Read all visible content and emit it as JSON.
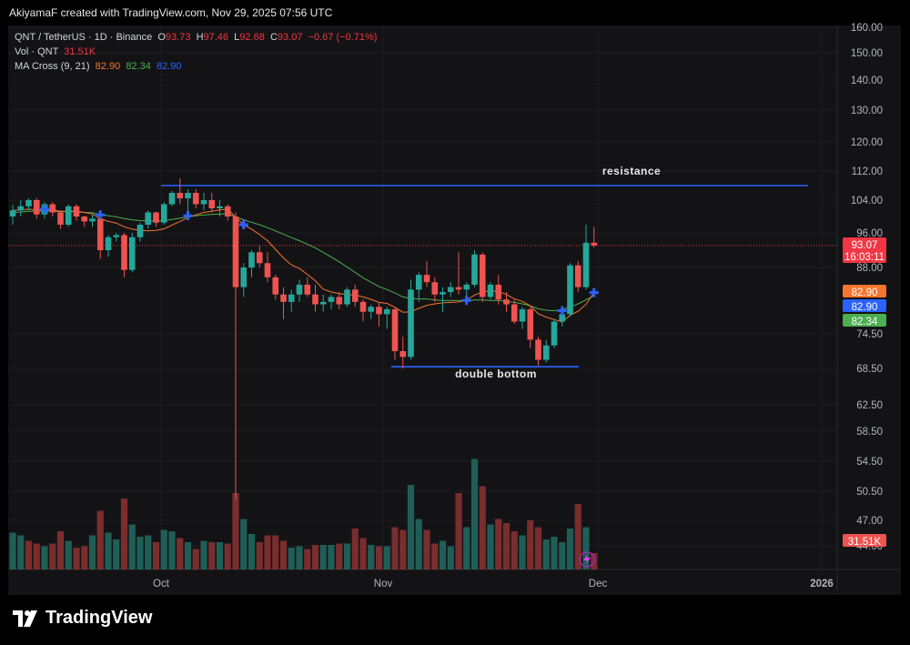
{
  "header": {
    "credit": "AkiyamaF created with TradingView.com, Nov 29, 2025 07:56 UTC"
  },
  "legend": {
    "symbol": "QNT / TetherUS · 1D · Binance",
    "o_label": "O",
    "o_value": "93.73",
    "h_label": "H",
    "h_value": "97.46",
    "l_label": "L",
    "l_value": "92.68",
    "c_label": "C",
    "c_value": "93.07",
    "change": "−0.67 (−0.71%)",
    "vol_label": "Vol · QNT",
    "vol_value": "31.51K",
    "ma_label": "MA Cross (9, 21)",
    "ma9": "82.90",
    "ma21": "82.34",
    "cross": "82.90"
  },
  "price_axis": {
    "ticks": [
      "160.00",
      "150.00",
      "140.00",
      "130.00",
      "120.00",
      "112.00",
      "104.00",
      "96.00",
      "88.00",
      "74.50",
      "68.50",
      "62.50",
      "58.50",
      "54.50",
      "50.50",
      "47.00",
      "44.00"
    ]
  },
  "badges": {
    "price": "93.07",
    "countdown": "16:03:11",
    "ma_fast": "82.90",
    "cross": "82.90",
    "ma_slow": "82.34",
    "volume": "31.51K"
  },
  "time_axis": {
    "labels": [
      "Oct",
      "Nov",
      "Dec",
      "2026"
    ]
  },
  "annotations": {
    "resistance": "resistance",
    "double_bottom": "double bottom"
  },
  "brand": {
    "name": "TradingView"
  },
  "colors": {
    "up": "#26a69a",
    "down": "#ef5350",
    "vol_up": "#1f5e57",
    "vol_down": "#7a2d2d",
    "ma_fast": "#f7752e",
    "ma_slow": "#4caf50",
    "cross": "#2962ff",
    "hline": "#2962ff",
    "last_price": "#f23645"
  },
  "chart_data": {
    "type": "candlestick",
    "symbol": "QNT / TetherUS",
    "interval": "1D",
    "exchange": "Binance",
    "price_ticks": [
      160,
      150,
      140,
      130,
      120,
      112,
      104,
      96,
      88,
      74.5,
      68.5,
      62.5,
      58.5,
      54.5,
      50.5,
      47,
      44
    ],
    "ohlc": [
      [
        100.0,
        102.8,
        98.0,
        101.5
      ],
      [
        101.5,
        104.0,
        100.0,
        102.5
      ],
      [
        102.5,
        104.5,
        101.5,
        104.0
      ],
      [
        104.0,
        104.6,
        99.5,
        100.5
      ],
      [
        100.5,
        103.5,
        99.5,
        103.0
      ],
      [
        103.0,
        103.5,
        100.0,
        101.0
      ],
      [
        101.0,
        101.5,
        97.0,
        98.0
      ],
      [
        98.0,
        103.0,
        97.5,
        102.5
      ],
      [
        102.5,
        103.0,
        99.0,
        100.0
      ],
      [
        100.0,
        100.2,
        97.5,
        98.8
      ],
      [
        98.8,
        100.5,
        97.5,
        99.5
      ],
      [
        99.5,
        100.0,
        90.0,
        92.0
      ],
      [
        92.0,
        95.5,
        90.5,
        95.0
      ],
      [
        95.0,
        96.0,
        94.0,
        95.5
      ],
      [
        95.5,
        96.0,
        86.0,
        87.5
      ],
      [
        87.5,
        96.0,
        87.0,
        95.0
      ],
      [
        95.0,
        98.5,
        94.0,
        98.0
      ],
      [
        98.0,
        101.5,
        97.0,
        101.0
      ],
      [
        101.0,
        101.2,
        97.5,
        98.5
      ],
      [
        98.5,
        103.5,
        98.0,
        103.0
      ],
      [
        103.0,
        106.5,
        102.5,
        106.0
      ],
      [
        106.0,
        110.0,
        103.0,
        104.5
      ],
      [
        104.5,
        107.0,
        101.0,
        106.0
      ],
      [
        106.0,
        107.0,
        102.0,
        103.0
      ],
      [
        103.0,
        106.0,
        101.5,
        104.0
      ],
      [
        104.0,
        106.0,
        101.0,
        102.0
      ],
      [
        102.0,
        104.0,
        100.0,
        102.5
      ],
      [
        102.5,
        103.0,
        99.0,
        100.0
      ],
      [
        100.0,
        101.0,
        49.5,
        84.0
      ],
      [
        84.0,
        89.0,
        82.0,
        88.0
      ],
      [
        88.0,
        92.0,
        86.0,
        91.5
      ],
      [
        91.5,
        93.0,
        88.0,
        89.0
      ],
      [
        89.0,
        91.5,
        85.0,
        86.0
      ],
      [
        86.0,
        86.5,
        81.5,
        82.5
      ],
      [
        82.5,
        84.0,
        77.5,
        81.0
      ],
      [
        81.0,
        83.5,
        79.0,
        82.5
      ],
      [
        82.5,
        85.5,
        81.0,
        84.5
      ],
      [
        84.5,
        86.0,
        82.0,
        82.5
      ],
      [
        82.5,
        84.5,
        79.0,
        80.5
      ],
      [
        80.5,
        82.5,
        79.0,
        81.0
      ],
      [
        81.0,
        82.5,
        79.5,
        82.0
      ],
      [
        82.0,
        83.0,
        79.5,
        80.5
      ],
      [
        80.5,
        84.0,
        80.0,
        83.5
      ],
      [
        83.5,
        84.5,
        80.0,
        81.0
      ],
      [
        81.0,
        81.5,
        77.0,
        79.0
      ],
      [
        79.0,
        80.5,
        77.5,
        80.0
      ],
      [
        80.0,
        81.0,
        76.0,
        78.5
      ],
      [
        78.5,
        80.0,
        75.5,
        79.5
      ],
      [
        79.5,
        80.0,
        70.0,
        71.5
      ],
      [
        71.5,
        74.0,
        68.5,
        70.5
      ],
      [
        70.5,
        85.5,
        70.0,
        83.5
      ],
      [
        83.5,
        87.0,
        81.0,
        86.5
      ],
      [
        86.5,
        89.5,
        84.0,
        85.0
      ],
      [
        85.0,
        86.0,
        81.0,
        82.5
      ],
      [
        82.5,
        84.0,
        79.0,
        83.0
      ],
      [
        83.0,
        85.0,
        82.0,
        84.0
      ],
      [
        84.0,
        91.5,
        82.5,
        83.5
      ],
      [
        83.5,
        85.0,
        81.0,
        84.5
      ],
      [
        84.5,
        92.0,
        84.0,
        91.0
      ],
      [
        91.0,
        91.5,
        81.0,
        82.0
      ],
      [
        82.0,
        85.0,
        81.5,
        84.5
      ],
      [
        84.5,
        86.5,
        80.5,
        81.5
      ],
      [
        81.5,
        83.0,
        79.0,
        80.5
      ],
      [
        80.5,
        81.5,
        76.5,
        77.0
      ],
      [
        77.0,
        80.0,
        75.5,
        79.5
      ],
      [
        79.5,
        80.0,
        72.0,
        73.5
      ],
      [
        73.5,
        74.0,
        69.0,
        70.0
      ],
      [
        70.0,
        73.5,
        69.5,
        72.5
      ],
      [
        72.5,
        77.5,
        72.0,
        77.0
      ],
      [
        77.0,
        79.0,
        76.0,
        78.5
      ],
      [
        78.5,
        89.0,
        78.0,
        88.5
      ],
      [
        88.5,
        89.5,
        83.0,
        84.0
      ],
      [
        84.0,
        98.0,
        83.5,
        93.73
      ],
      [
        93.73,
        97.46,
        92.68,
        93.07
      ]
    ],
    "ma9": [
      101.5,
      101.6,
      101.8,
      101.6,
      101.7,
      101.6,
      101.3,
      101.3,
      101.3,
      101.0,
      100.6,
      99.5,
      98.8,
      98.4,
      97.5,
      96.9,
      96.6,
      96.5,
      96.6,
      97.0,
      97.9,
      98.8,
      99.7,
      100.4,
      101.0,
      101.3,
      101.6,
      101.8,
      99.8,
      98.0,
      96.9,
      95.6,
      94.2,
      92.2,
      90.2,
      88.6,
      87.8,
      86.6,
      85.3,
      83.6,
      83.0,
      82.7,
      82.5,
      82.4,
      82.0,
      81.5,
      80.9,
      80.7,
      79.9,
      78.9,
      79.0,
      79.7,
      80.3,
      80.6,
      80.8,
      80.9,
      81.0,
      81.4,
      82.4,
      83.0,
      83.3,
      83.1,
      82.5,
      81.6,
      81.1,
      80.2,
      78.6,
      77.9,
      77.4,
      76.9,
      78.3,
      79.1,
      80.5,
      82.9
    ],
    "ma21": [
      101.0,
      101.1,
      101.3,
      101.3,
      101.4,
      101.3,
      101.2,
      101.2,
      101.2,
      101.0,
      100.9,
      100.5,
      100.2,
      99.9,
      99.5,
      99.2,
      99.0,
      98.9,
      98.9,
      99.0,
      99.3,
      99.6,
      99.9,
      100.2,
      100.4,
      100.5,
      100.6,
      100.7,
      99.9,
      99.2,
      98.6,
      98.0,
      97.3,
      96.5,
      95.7,
      94.9,
      94.2,
      93.4,
      92.5,
      91.5,
      90.4,
      89.3,
      88.1,
      87.0,
      85.9,
      85.0,
      84.1,
      83.5,
      82.8,
      82.0,
      81.7,
      81.6,
      81.6,
      81.4,
      81.3,
      81.3,
      81.3,
      81.2,
      81.4,
      81.4,
      81.3,
      81.3,
      81.1,
      80.9,
      80.6,
      80.2,
      79.6,
      79.3,
      79.2,
      79.4,
      80.0,
      80.6,
      81.4,
      82.3
    ],
    "volume_relative": [
      0.27,
      0.25,
      0.21,
      0.19,
      0.17,
      0.19,
      0.28,
      0.21,
      0.16,
      0.17,
      0.25,
      0.43,
      0.27,
      0.22,
      0.52,
      0.33,
      0.24,
      0.25,
      0.2,
      0.29,
      0.28,
      0.23,
      0.2,
      0.15,
      0.21,
      0.2,
      0.2,
      0.19,
      0.56,
      0.37,
      0.26,
      0.2,
      0.25,
      0.25,
      0.21,
      0.16,
      0.17,
      0.15,
      0.18,
      0.18,
      0.18,
      0.19,
      0.19,
      0.3,
      0.23,
      0.18,
      0.17,
      0.17,
      0.31,
      0.29,
      0.62,
      0.37,
      0.29,
      0.19,
      0.21,
      0.17,
      0.56,
      0.31,
      0.81,
      0.61,
      0.33,
      0.37,
      0.34,
      0.28,
      0.25,
      0.36,
      0.31,
      0.22,
      0.24,
      0.2,
      0.3,
      0.48,
      0.31,
      0.12
    ],
    "volume_up": [
      true,
      true,
      false,
      false,
      true,
      false,
      false,
      true,
      false,
      false,
      true,
      false,
      true,
      true,
      false,
      true,
      true,
      true,
      false,
      true,
      true,
      false,
      true,
      false,
      true,
      false,
      true,
      false,
      false,
      true,
      true,
      false,
      false,
      false,
      false,
      true,
      true,
      false,
      false,
      true,
      true,
      false,
      true,
      false,
      false,
      true,
      false,
      true,
      false,
      false,
      true,
      true,
      false,
      false,
      true,
      true,
      false,
      true,
      true,
      false,
      true,
      false,
      false,
      false,
      true,
      false,
      false,
      true,
      true,
      true,
      true,
      false,
      true,
      false
    ],
    "cross_markers": [
      {
        "index": 4,
        "price": 101.8
      },
      {
        "index": 11,
        "price": 100.4
      },
      {
        "index": 22,
        "price": 100.2
      },
      {
        "index": 29,
        "price": 98.0
      },
      {
        "index": 57,
        "price": 81.3
      },
      {
        "index": 69,
        "price": 79.2
      },
      {
        "index": 73,
        "price": 82.9
      }
    ],
    "resistance": 108.0,
    "double_bottom": 68.8,
    "last_price": 93.07,
    "time_labels": [
      "Oct",
      "Nov",
      "Dec",
      "2026"
    ]
  }
}
